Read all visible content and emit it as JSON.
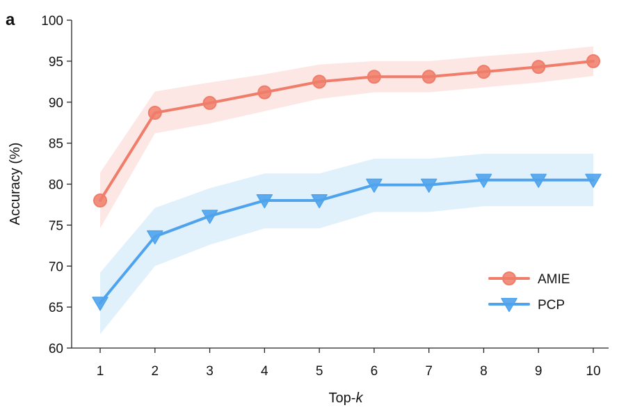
{
  "chart_data": {
    "type": "line",
    "panel_label": "a",
    "title": "",
    "xlabel_main": "Top-",
    "xlabel_italic": "k",
    "ylabel": "Accuracy (%)",
    "xlim": [
      1,
      10
    ],
    "ylim": [
      60,
      100
    ],
    "x_ticks": [
      "1",
      "2",
      "3",
      "4",
      "5",
      "6",
      "7",
      "8",
      "9",
      "10"
    ],
    "y_ticks": [
      "60",
      "65",
      "70",
      "75",
      "80",
      "85",
      "90",
      "95",
      "100"
    ],
    "grid": false,
    "legend_position": "center-right",
    "x": [
      1,
      2,
      3,
      4,
      5,
      6,
      7,
      8,
      9,
      10
    ],
    "series": [
      {
        "name": "AMIE",
        "marker": "circle",
        "color": "#f07c6a",
        "band_color": "#fde3df",
        "values": [
          78.0,
          88.7,
          89.9,
          91.2,
          92.5,
          93.1,
          93.1,
          93.7,
          94.3,
          95.0
        ],
        "lower": [
          74.6,
          86.2,
          87.4,
          88.9,
          90.4,
          91.2,
          91.2,
          91.8,
          92.4,
          93.2
        ],
        "upper": [
          81.4,
          91.3,
          92.4,
          93.4,
          94.6,
          95.0,
          95.0,
          95.6,
          96.1,
          96.8
        ]
      },
      {
        "name": "PCP",
        "marker": "triangle-down",
        "color": "#4fa3ec",
        "band_color": "#dceefc",
        "values": [
          65.5,
          73.6,
          76.1,
          78.0,
          78.0,
          79.9,
          79.9,
          80.5,
          80.5,
          80.5
        ],
        "lower": [
          61.7,
          70.0,
          72.6,
          74.6,
          74.6,
          76.6,
          76.6,
          77.3,
          77.3,
          77.3
        ],
        "upper": [
          69.2,
          77.1,
          79.5,
          81.3,
          81.3,
          83.1,
          83.1,
          83.7,
          83.7,
          83.7
        ]
      }
    ]
  }
}
